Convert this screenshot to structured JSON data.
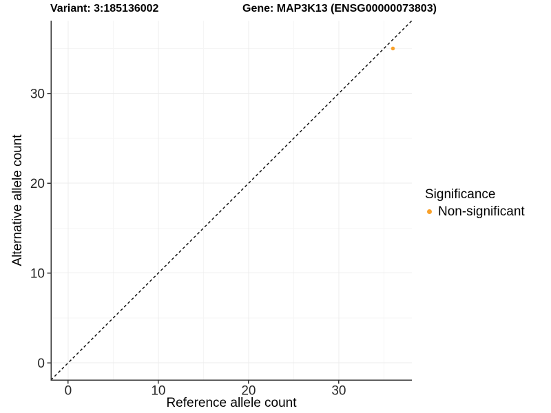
{
  "header": {
    "variant_title": "Variant: 3:185136002",
    "gene_title": "Gene: MAP3K13 (ENSG00000073803)"
  },
  "chart_data": {
    "type": "scatter",
    "title": "Variant: 3:185136002  Gene: MAP3K13 (ENSG00000073803)",
    "xlabel": "Reference allele count",
    "ylabel": "Alternative allele count",
    "xlim": [
      -1.9,
      38.1
    ],
    "ylim": [
      -1.9,
      38.1
    ],
    "xticks": [
      0,
      10,
      20,
      30
    ],
    "yticks": [
      0,
      10,
      20,
      30
    ],
    "x_minor_ticks": [
      5,
      15,
      25,
      35
    ],
    "y_minor_ticks": [
      5,
      15,
      25,
      35
    ],
    "grid": true,
    "identity_line": {
      "style": "dashed",
      "slope": 1,
      "intercept": 0,
      "color": "#111111"
    },
    "series": [
      {
        "name": "Non-significant",
        "color": "#F9A12B",
        "points": [
          [
            36,
            35
          ]
        ]
      }
    ],
    "legend": {
      "title": "Significance",
      "position": "right",
      "items": [
        {
          "label": "Non-significant",
          "color": "#F9A12B"
        }
      ]
    },
    "theme": {
      "background": "#FFFFFF",
      "axis_line_color": "#333333",
      "tick_color": "#333333",
      "tick_label_color": "#262626",
      "grid_major_color": "#ECECEC",
      "grid_minor_color": "#F5F5F5"
    }
  }
}
